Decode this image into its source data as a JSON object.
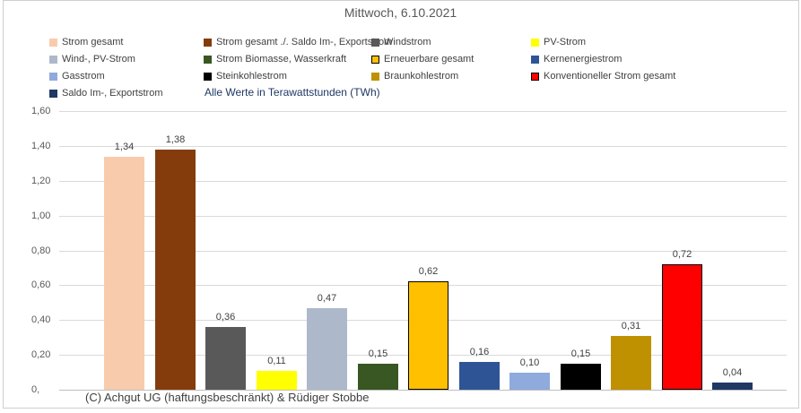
{
  "title": "Mittwoch, 6.10.2021",
  "note": "Alle Werte in Terawattstunden (TWh)",
  "footer": "(C) Achgut UG (haftungsbeschränkt) & Rüdiger Stobbe",
  "colors": {
    "grid": "#d9d9d9",
    "axis": "#bfbfbf",
    "title_text": "#595959",
    "tick_text": "#595959",
    "value_label_text": "#404040",
    "legend_text": "#404040",
    "note_text": "#1f3864",
    "frame_border": "#d0cece",
    "background": "#ffffff"
  },
  "chart_data": {
    "type": "bar",
    "title": "Mittwoch, 6.10.2021",
    "unit_note": "Alle Werte in Terawattstunden (TWh)",
    "xlabel": "",
    "ylabel": "",
    "ylim": [
      0,
      1.6
    ],
    "grid": true,
    "legend_position": "top",
    "yticks": [
      {
        "value": 0,
        "label": "0,"
      },
      {
        "value": 0.2,
        "label": "0,20"
      },
      {
        "value": 0.4,
        "label": "0,40"
      },
      {
        "value": 0.6,
        "label": "0,60"
      },
      {
        "value": 0.8,
        "label": "0,80"
      },
      {
        "value": 1.0,
        "label": "1,00"
      },
      {
        "value": 1.2,
        "label": "1,20"
      },
      {
        "value": 1.4,
        "label": "1,40"
      },
      {
        "value": 1.6,
        "label": "1,60"
      }
    ],
    "series": [
      {
        "name": "Strom gesamt",
        "value": 1.34,
        "label": "1,34",
        "color": "#F8CBAD"
      },
      {
        "name": "Strom gesamt ./. Saldo Im-, Exportstrom",
        "value": 1.38,
        "label": "1,38",
        "color": "#843C0C"
      },
      {
        "name": "Windstrom",
        "value": 0.36,
        "label": "0,36",
        "color": "#595959"
      },
      {
        "name": "PV-Strom",
        "value": 0.11,
        "label": "0,11",
        "color": "#FFFF00"
      },
      {
        "name": "Wind-, PV-Strom",
        "value": 0.47,
        "label": "0,47",
        "color": "#ADB9CA"
      },
      {
        "name": "Strom Biomasse, Wasserkraft",
        "value": 0.15,
        "label": "0,15",
        "color": "#385723"
      },
      {
        "name": "Erneuerbare gesamt",
        "value": 0.62,
        "label": "0,62",
        "color": "#FFC000",
        "border": "#000000"
      },
      {
        "name": "Kernenergiestrom",
        "value": 0.16,
        "label": "0,16",
        "color": "#2F5496"
      },
      {
        "name": "Gasstrom",
        "value": 0.1,
        "label": "0,10",
        "color": "#8FAADC"
      },
      {
        "name": "Steinkohlestrom",
        "value": 0.15,
        "label": "0,15",
        "color": "#000000"
      },
      {
        "name": "Braunkohlestrom",
        "value": 0.31,
        "label": "0,31",
        "color": "#BF9000"
      },
      {
        "name": "Konventioneller Strom gesamt",
        "value": 0.72,
        "label": "0,72",
        "color": "#FF0000",
        "border": "#000000"
      },
      {
        "name": "Saldo Im-, Exportstrom",
        "value": 0.04,
        "label": "0,04",
        "color": "#1F3864"
      }
    ]
  }
}
